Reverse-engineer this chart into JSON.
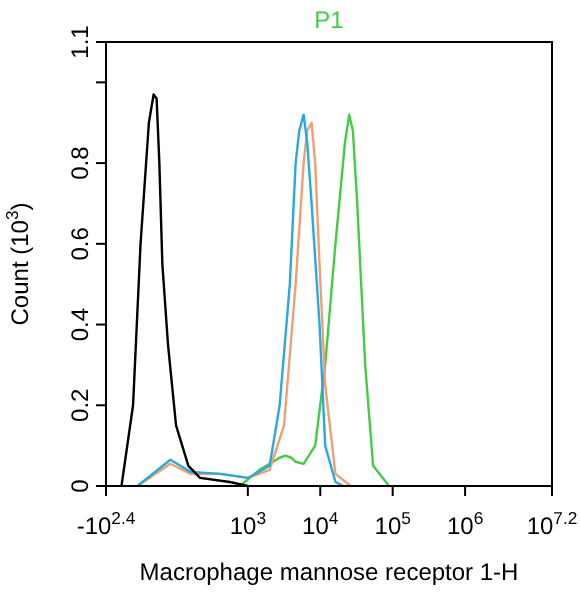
{
  "chart_data": {
    "type": "line",
    "xlabel": "Macrophage mannose receptor 1-H",
    "ylabel": "Count (10$^{3}$)",
    "log": "x",
    "xlim": [
      11,
      15850000
    ],
    "xticks": [
      {
        "value": 11,
        "label": "-10$^{2.4}$"
      },
      {
        "value": 1000,
        "label": "10$^{3}$"
      },
      {
        "value": 10000,
        "label": "10$^{4}$"
      },
      {
        "value": 100000,
        "label": "10$^{5}$"
      },
      {
        "value": 1000000,
        "label": "10$^{6}$"
      },
      {
        "value": 15850000,
        "label": "10$^{7.2}$"
      }
    ],
    "ylim": [
      0,
      1.1
    ],
    "yticks": [
      0,
      0.2,
      0.4,
      0.6,
      0.8,
      {
        "value": 1,
        "label": null
      },
      1.1
    ],
    "grid": false,
    "legend": "top",
    "marker": "none",
    "line_style": "solid",
    "series": [
      {
        "color": "#000000",
        "x": [
          18,
          26,
          33,
          43,
          50,
          55,
          60,
          66,
          79,
          102,
          151,
          219,
          562,
          1000
        ],
        "values": [
          0,
          0.2,
          0.6,
          0.9,
          0.97,
          0.96,
          0.8,
          0.55,
          0.35,
          0.15,
          0.05,
          0.02,
          0.01,
          0
        ]
      },
      {
        "color": "#2aa8e0",
        "x": [
          30,
          85,
          162,
          417,
          1000,
          2000,
          2750,
          3800,
          4570,
          5130,
          5890,
          6610,
          7590,
          9770,
          11700,
          16200,
          20900
        ],
        "values": [
          0,
          0.065,
          0.035,
          0.03,
          0.02,
          0.05,
          0.2,
          0.5,
          0.8,
          0.88,
          0.92,
          0.85,
          0.7,
          0.4,
          0.1,
          0.01,
          0
        ]
      },
      {
        "color": "#f0a070",
        "x": [
          30,
          85,
          162,
          417,
          1000,
          2000,
          3160,
          4570,
          5890,
          6610,
          7590,
          8510,
          9770,
          11700,
          16200,
          26300
        ],
        "values": [
          0,
          0.055,
          0.03,
          0.03,
          0.02,
          0.04,
          0.15,
          0.5,
          0.8,
          0.88,
          0.9,
          0.8,
          0.55,
          0.25,
          0.03,
          0
        ]
      },
      {
        "name": "P1",
        "color": "#44cc44",
        "x": [
          776,
          1450,
          2750,
          3310,
          3980,
          4570,
          5890,
          8510,
          11700,
          16200,
          21900,
          25100,
          28200,
          32400,
          41700,
          53700,
          89100
        ],
        "values": [
          0,
          0.04,
          0.07,
          0.075,
          0.07,
          0.06,
          0.055,
          0.1,
          0.3,
          0.6,
          0.85,
          0.92,
          0.88,
          0.7,
          0.3,
          0.05,
          0
        ]
      }
    ]
  }
}
